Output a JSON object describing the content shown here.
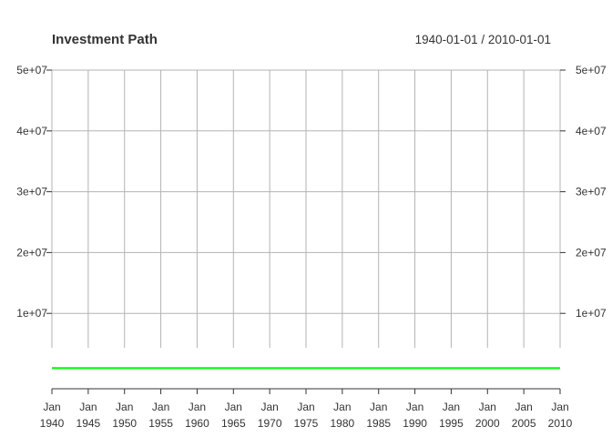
{
  "chart_data": {
    "type": "line",
    "title": "Investment Path",
    "date_range": "1940-01-01 / 2010-01-01",
    "xlabel": "",
    "ylabel": "",
    "x": [
      "1940",
      "1941",
      "1942",
      "1943",
      "1944",
      "1945",
      "1946",
      "1947",
      "1948",
      "1949",
      "1950",
      "1951",
      "1952",
      "1953",
      "1954",
      "1955",
      "1956",
      "1957",
      "1958",
      "1959",
      "1960",
      "1961",
      "1962",
      "1963",
      "1964",
      "1965",
      "1966",
      "1967",
      "1968",
      "1969",
      "1970",
      "1971",
      "1972",
      "1973",
      "1974",
      "1975",
      "1976",
      "1977",
      "1978",
      "1979",
      "1980",
      "1981",
      "1982",
      "1983",
      "1984",
      "1985",
      "1986",
      "1987",
      "1988",
      "1989",
      "1990",
      "1991",
      "1992",
      "1993",
      "1994",
      "1995",
      "1996",
      "1997",
      "1998",
      "1999",
      "2000",
      "2001",
      "2002",
      "2003",
      "2004",
      "2005",
      "2006",
      "2007",
      "2008",
      "2009",
      "2010"
    ],
    "xlim": [
      "1940-01-01",
      "2010-01-01"
    ],
    "ylim": [
      -1500000,
      51000000
    ],
    "x_tick_labels": [
      {
        "month": "Jan",
        "year": "1940"
      },
      {
        "month": "Jan",
        "year": "1945"
      },
      {
        "month": "Jan",
        "year": "1950"
      },
      {
        "month": "Jan",
        "year": "1955"
      },
      {
        "month": "Jan",
        "year": "1960"
      },
      {
        "month": "Jan",
        "year": "1965"
      },
      {
        "month": "Jan",
        "year": "1970"
      },
      {
        "month": "Jan",
        "year": "1975"
      },
      {
        "month": "Jan",
        "year": "1980"
      },
      {
        "month": "Jan",
        "year": "1985"
      },
      {
        "month": "Jan",
        "year": "1990"
      },
      {
        "month": "Jan",
        "year": "1995"
      },
      {
        "month": "Jan",
        "year": "2000"
      },
      {
        "month": "Jan",
        "year": "2005"
      },
      {
        "month": "Jan",
        "year": "2010"
      }
    ],
    "y_ticks": [
      {
        "value": 10000000,
        "label": "1e+07"
      },
      {
        "value": 20000000,
        "label": "2e+07"
      },
      {
        "value": 30000000,
        "label": "3e+07"
      },
      {
        "value": 40000000,
        "label": "4e+07"
      },
      {
        "value": 50000000,
        "label": "5e+07"
      }
    ],
    "grid": true,
    "legend": "none",
    "series": [
      {
        "color": "#00ff00",
        "values": [
          1000000,
          1000000,
          1000000,
          1000000,
          1000000,
          1000000,
          1000000,
          1000000,
          1000000,
          1000000,
          1000000,
          1000000,
          1000000,
          1000000,
          1000000,
          1000000,
          1000000,
          1000000,
          1000000,
          1000000,
          1000000,
          1000000,
          1000000,
          1000000,
          1000000,
          1000000,
          1000000,
          1000000,
          1000000,
          1000000,
          1000000,
          1000000,
          1000000,
          1000000,
          1000000,
          1000000,
          1000000,
          1000000,
          1000000,
          1000000,
          1000000,
          1000000,
          1000000,
          1000000,
          1000000,
          1000000,
          1000000,
          1000000,
          1000000,
          1000000,
          1000000,
          1000000,
          1000000,
          1000000,
          1000000,
          1000000,
          1000000,
          1000000,
          1000000,
          1000000,
          1000000,
          1000000,
          1000000,
          1000000,
          1000000,
          1000000,
          1000000,
          1000000,
          1000000,
          1000000,
          1000000
        ]
      }
    ]
  }
}
